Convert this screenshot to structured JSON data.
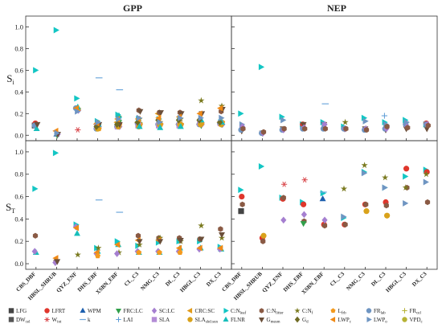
{
  "chart_data": [
    {
      "type": "scatter",
      "panel": "GPP",
      "title": "GPP",
      "ylabel": "Si",
      "yticks": [
        "0.0",
        "0.2",
        "0.4",
        "0.6",
        "0.8",
        "1.0"
      ],
      "ylim": [
        -0.05,
        1.1
      ],
      "categories": [
        "CBS_DBF",
        "HBSL_SHRUB",
        "QYZ_ENF",
        "DHS_EBF",
        "XSBN_EBF",
        "CL_C3",
        "NMG_C3",
        "DL_C3",
        "HBGL_C3",
        "DX_C3"
      ],
      "series": [
        {
          "name": "LFG",
          "values": [
            0.09,
            null,
            null,
            null,
            null,
            null,
            null,
            null,
            null,
            null
          ]
        },
        {
          "name": "LFRT",
          "values": [
            0.11,
            null,
            null,
            null,
            null,
            null,
            null,
            null,
            null,
            null
          ]
        },
        {
          "name": "WPM",
          "values": [
            null,
            0.01,
            null,
            null,
            null,
            null,
            null,
            null,
            null,
            null
          ]
        },
        {
          "name": "FRC:LC",
          "values": [
            null,
            0.0,
            null,
            0.08,
            0.12,
            0.1,
            0.09,
            0.09,
            0.09,
            0.1
          ]
        },
        {
          "name": "SC:LC",
          "values": [
            null,
            0.01,
            0.23,
            0.08,
            0.08,
            0.1,
            0.1,
            0.1,
            0.1,
            0.1
          ]
        },
        {
          "name": "CRC:SC",
          "values": [
            null,
            null,
            null,
            0.1,
            0.12,
            0.12,
            0.2,
            0.1,
            0.1,
            0.12
          ]
        },
        {
          "name": "C:Nleaf",
          "values": [
            0.6,
            0.97,
            0.34,
            0.13,
            0.19,
            0.15,
            0.15,
            0.15,
            0.12,
            0.12
          ]
        },
        {
          "name": "C:Nlitter",
          "values": [
            0.1,
            null,
            null,
            null,
            0.1,
            0.23,
            0.21,
            0.21,
            0.12,
            0.22
          ]
        },
        {
          "name": "C:Nf",
          "values": [
            null,
            null,
            null,
            0.11,
            0.17,
            0.15,
            0.12,
            0.15,
            0.32,
            0.27
          ]
        },
        {
          "name": "Lfrb",
          "values": [
            null,
            null,
            0.24,
            0.06,
            0.1,
            0.1,
            0.1,
            0.1,
            0.11,
            0.12
          ]
        },
        {
          "name": "FRlab",
          "values": [
            0.09,
            null,
            0.25,
            0.06,
            0.08,
            0.11,
            0.1,
            0.1,
            0.1,
            0.11
          ]
        },
        {
          "name": "FRcel",
          "values": [
            null,
            null,
            null,
            null,
            null,
            null,
            null,
            null,
            null,
            null
          ]
        },
        {
          "name": "DWcel",
          "values": [
            null,
            null,
            null,
            null,
            null,
            null,
            null,
            null,
            null,
            null
          ]
        },
        {
          "name": "Wint",
          "values": [
            null,
            null,
            0.05,
            null,
            null,
            null,
            null,
            null,
            null,
            null
          ]
        },
        {
          "name": "k",
          "values": [
            null,
            null,
            null,
            0.53,
            0.42,
            null,
            null,
            null,
            null,
            null
          ]
        },
        {
          "name": "LAI",
          "values": [
            null,
            null,
            null,
            null,
            null,
            null,
            null,
            null,
            null,
            null
          ]
        },
        {
          "name": "SLA",
          "values": [
            null,
            null,
            null,
            0.08,
            0.08,
            0.09,
            0.09,
            0.09,
            0.11,
            0.11
          ]
        },
        {
          "name": "SLAshd:sun",
          "values": [
            null,
            null,
            null,
            0.06,
            0.08,
            0.08,
            0.1,
            0.1,
            0.1,
            0.1
          ]
        },
        {
          "name": "FLNR",
          "values": [
            0.06,
            null,
            0.26,
            0.1,
            0.18,
            0.08,
            0.07,
            0.08,
            0.14,
            0.12
          ]
        },
        {
          "name": "Gmesm",
          "values": [
            0.1,
            0.01,
            null,
            0.1,
            0.1,
            0.22,
            0.21,
            0.2,
            0.2,
            0.24
          ]
        },
        {
          "name": "Gd",
          "values": [
            null,
            null,
            null,
            0.08,
            0.1,
            0.12,
            0.14,
            0.14,
            0.14,
            0.12
          ]
        },
        {
          "name": "LWPc",
          "values": [
            null,
            0.04,
            0.25,
            0.11,
            0.15,
            0.15,
            0.16,
            0.17,
            0.2,
            0.25
          ]
        },
        {
          "name": "LWPo",
          "values": [
            null,
            0.02,
            0.22,
            0.12,
            0.15,
            0.16,
            0.12,
            0.16,
            0.16,
            0.16
          ]
        },
        {
          "name": "VPDc",
          "values": [
            null,
            null,
            null,
            null,
            null,
            null,
            null,
            null,
            null,
            null
          ]
        }
      ]
    },
    {
      "type": "scatter",
      "panel": "NEP",
      "title": "NEP",
      "categories": [
        "CBS_DBF",
        "HBSL_SHRUB",
        "QYZ_ENF",
        "DHS_EBF",
        "XSBN_EBF",
        "CL_C3",
        "NMG_C3",
        "DL_C3",
        "HBGL_C3",
        "DX_C3"
      ],
      "series": [
        {
          "name": "C:Nleaf",
          "values": [
            0.2,
            0.63,
            0.17,
            0.1,
            0.12,
            0.08,
            0.16,
            0.12,
            0.14,
            0.1
          ]
        },
        {
          "name": "LFRT",
          "values": [
            null,
            null,
            null,
            0.1,
            null,
            null,
            null,
            null,
            null,
            0.11
          ]
        },
        {
          "name": "Gmesm",
          "values": [
            0.04,
            0.02,
            0.06,
            0.1,
            0.1,
            0.06,
            0.06,
            0.05,
            0.06,
            0.06
          ]
        },
        {
          "name": "C:Nf",
          "values": [
            null,
            null,
            null,
            null,
            null,
            0.12,
            0.05,
            0.08,
            null,
            null
          ]
        },
        {
          "name": "k",
          "values": [
            null,
            null,
            null,
            null,
            0.29,
            null,
            null,
            null,
            null,
            null
          ]
        },
        {
          "name": "LAI",
          "values": [
            null,
            null,
            null,
            null,
            null,
            null,
            null,
            0.18,
            null,
            null
          ]
        },
        {
          "name": "FRlab",
          "values": [
            0.05,
            0.02,
            0.05,
            0.06,
            0.06,
            0.06,
            0.05,
            0.06,
            0.1,
            0.1
          ]
        },
        {
          "name": "LWPo",
          "values": [
            0.1,
            null,
            0.14,
            null,
            0.1,
            null,
            0.13,
            0.1,
            0.12,
            0.1
          ]
        },
        {
          "name": "SC:LC",
          "values": [
            0.08,
            0.02,
            0.05,
            0.07,
            0.1,
            0.06,
            0.06,
            0.06,
            0.08,
            0.1
          ]
        },
        {
          "name": "C:Nlitter",
          "values": [
            0.06,
            0.03,
            0.06,
            0.06,
            0.06,
            0.06,
            0.05,
            0.08,
            0.07,
            0.09
          ]
        }
      ]
    },
    {
      "type": "scatter",
      "panel": "GPP",
      "ylabel": "ST",
      "yticks": [
        "0.0",
        "0.2",
        "0.4",
        "0.6",
        "0.8",
        "1.0"
      ],
      "categories": [
        "CBS_DBF",
        "HBSL_SHRUB",
        "QYZ_ENF",
        "DHS_EBF",
        "XSBN_EBF",
        "CL_C3",
        "NMG_C3",
        "DL_C3",
        "HBGL_C3",
        "DX_C3"
      ],
      "series": [
        {
          "name": "C:Nleaf",
          "values": [
            0.67,
            0.99,
            0.35,
            0.14,
            0.2,
            0.16,
            0.19,
            0.2,
            0.2,
            0.15
          ]
        },
        {
          "name": "C:Nlitter",
          "values": [
            0.25,
            0.02,
            null,
            null,
            null,
            0.25,
            0.23,
            0.23,
            0.22,
            0.31
          ]
        },
        {
          "name": "FLNR",
          "values": [
            0.1,
            null,
            0.27,
            0.11,
            0.17,
            0.1,
            0.1,
            0.14,
            0.14,
            0.13
          ]
        },
        {
          "name": "C:Nf",
          "values": [
            null,
            null,
            0.08,
            0.14,
            0.1,
            0.17,
            0.23,
            0.2,
            0.34,
            0.23
          ]
        },
        {
          "name": "k",
          "values": [
            null,
            null,
            null,
            0.57,
            0.46,
            null,
            null,
            null,
            null,
            null
          ]
        },
        {
          "name": "SC:LC",
          "values": [
            0.11,
            0.01,
            0.33,
            0.09,
            0.09,
            0.11,
            0.11,
            0.11,
            0.13,
            0.13
          ]
        },
        {
          "name": "LWPc",
          "values": [
            null,
            0.05,
            0.32,
            0.1,
            0.17,
            0.21,
            0.21,
            0.14,
            0.14,
            0.14
          ]
        },
        {
          "name": "Lfrb",
          "values": [
            null,
            null,
            null,
            0.07,
            null,
            0.1,
            0.1,
            0.1,
            null,
            null
          ]
        },
        {
          "name": "Gmesm",
          "values": [
            null,
            0.02,
            null,
            null,
            null,
            0.2,
            0.2,
            0.21,
            0.22,
            0.26
          ]
        }
      ]
    },
    {
      "type": "scatter",
      "panel": "NEP",
      "ylabel": "ST",
      "categories": [
        "CBS_DBF",
        "HBSL_SHRUB",
        "QYZ_ENF",
        "DHS_EBF",
        "XSBN_EBF",
        "CL_C3",
        "NMG_C3",
        "DL_C3",
        "HBGL_C3",
        "DX_C3"
      ],
      "series": [
        {
          "name": "C:Nleaf",
          "values": [
            0.66,
            0.87,
            0.59,
            0.55,
            0.63,
            0.41,
            0.82,
            0.68,
            0.78,
            0.84
          ]
        },
        {
          "name": "LFG",
          "values": [
            0.47,
            null,
            null,
            null,
            null,
            null,
            null,
            null,
            null,
            null
          ]
        },
        {
          "name": "LFRT",
          "values": [
            0.6,
            0.23,
            0.58,
            0.53,
            0.35,
            0.35,
            0.53,
            0.55,
            0.85,
            0.82
          ]
        },
        {
          "name": "C:Nlitter",
          "values": [
            0.53,
            0.2,
            0.59,
            0.38,
            0.34,
            0.35,
            0.53,
            0.52,
            0.68,
            0.55
          ]
        },
        {
          "name": "Wint",
          "values": [
            null,
            null,
            0.71,
            0.75,
            null,
            null,
            null,
            null,
            null,
            null
          ]
        },
        {
          "name": "WPM",
          "values": [
            null,
            null,
            null,
            null,
            0.58,
            null,
            null,
            null,
            null,
            null
          ]
        },
        {
          "name": "C:Nf",
          "values": [
            null,
            null,
            null,
            null,
            null,
            0.67,
            0.88,
            0.77,
            0.68,
            0.8
          ]
        },
        {
          "name": "FRC:LC",
          "values": [
            null,
            null,
            null,
            0.36,
            null,
            null,
            null,
            null,
            null,
            null
          ]
        },
        {
          "name": "SC:LC",
          "values": [
            null,
            null,
            0.39,
            0.44,
            0.39,
            null,
            null,
            null,
            null,
            null
          ]
        },
        {
          "name": "SLAshd:sun",
          "values": [
            null,
            0.25,
            null,
            null,
            null,
            null,
            0.47,
            0.43,
            null,
            null
          ]
        },
        {
          "name": "LWPo",
          "values": [
            null,
            null,
            null,
            null,
            null,
            0.42,
            0.81,
            0.68,
            0.54,
            0.73
          ]
        },
        {
          "name": "k",
          "values": [
            null,
            null,
            null,
            null,
            0.64,
            null,
            null,
            null,
            null,
            null
          ]
        }
      ]
    }
  ],
  "legend": [
    {
      "name": "LFG",
      "label": "LFG",
      "sub": "",
      "marker": "square",
      "color": "#444444"
    },
    {
      "name": "DWcel",
      "label": "DW",
      "sub": "cel",
      "marker": "square",
      "color": "#555555"
    },
    {
      "name": "LFRT",
      "label": "LFRT",
      "sub": "",
      "marker": "circle",
      "color": "#e0362c"
    },
    {
      "name": "Wint",
      "label": "W",
      "sub": "int",
      "marker": "star6",
      "color": "#d9474b"
    },
    {
      "name": "WPM",
      "label": "WPM",
      "sub": "",
      "marker": "triangle",
      "color": "#1d5fae"
    },
    {
      "name": "k",
      "label": "k",
      "sub": "",
      "marker": "dash",
      "color": "#6fa8dc"
    },
    {
      "name": "FRC:LC",
      "label": "FRC:LC",
      "sub": "",
      "marker": "tri-down",
      "color": "#31a04a"
    },
    {
      "name": "LAI",
      "label": "LAI",
      "sub": "",
      "marker": "plus",
      "color": "#5b9bd5"
    },
    {
      "name": "SC:LC",
      "label": "SC:LC",
      "sub": "",
      "marker": "diamond",
      "color": "#a57fd0"
    },
    {
      "name": "SLA",
      "label": "SLA",
      "sub": "",
      "marker": "square",
      "color": "#b38cd6"
    },
    {
      "name": "CRC:SC",
      "label": "CRC:SC",
      "sub": "",
      "marker": "tri-left",
      "color": "#e19b19"
    },
    {
      "name": "SLAshd:sun",
      "label": "SLA",
      "sub": "shd:sun",
      "marker": "circle",
      "color": "#d9a21b"
    },
    {
      "name": "C:Nleaf",
      "label": "C:N",
      "sub": "leaf",
      "marker": "tri-right",
      "color": "#13c6c4"
    },
    {
      "name": "FLNR",
      "label": "FLNR",
      "sub": "",
      "marker": "triangle",
      "color": "#17bebb"
    },
    {
      "name": "C:Nlitter",
      "label": "C:N",
      "sub": "litter",
      "marker": "hexagon",
      "color": "#8a5a44"
    },
    {
      "name": "Gmesm",
      "label": "G",
      "sub": "mesm",
      "marker": "tri-down",
      "color": "#6b4f3a"
    },
    {
      "name": "C:Nf",
      "label": "C:N",
      "sub": "f",
      "marker": "star",
      "color": "#7a7a1f"
    },
    {
      "name": "Gd",
      "label": "G",
      "sub": "d",
      "marker": "diamond",
      "color": "#6f6b24"
    },
    {
      "name": "Lfrb",
      "label": "L",
      "sub": "frb",
      "marker": "pentagon",
      "color": "#f39a1e"
    },
    {
      "name": "LWPc",
      "label": "LWP",
      "sub": "c",
      "marker": "tri-left",
      "color": "#f08a16"
    },
    {
      "name": "FRlab",
      "label": "FR",
      "sub": "lab",
      "marker": "circle",
      "color": "#6f95c2"
    },
    {
      "name": "LWPo",
      "label": "LWP",
      "sub": "o",
      "marker": "tri-right",
      "color": "#6f95c2"
    },
    {
      "name": "FRcel",
      "label": "FR",
      "sub": "cel",
      "marker": "plus",
      "color": "#b6b234"
    },
    {
      "name": "VPDc",
      "label": "VPD",
      "sub": "c",
      "marker": "circle",
      "color": "#b6b234"
    }
  ]
}
